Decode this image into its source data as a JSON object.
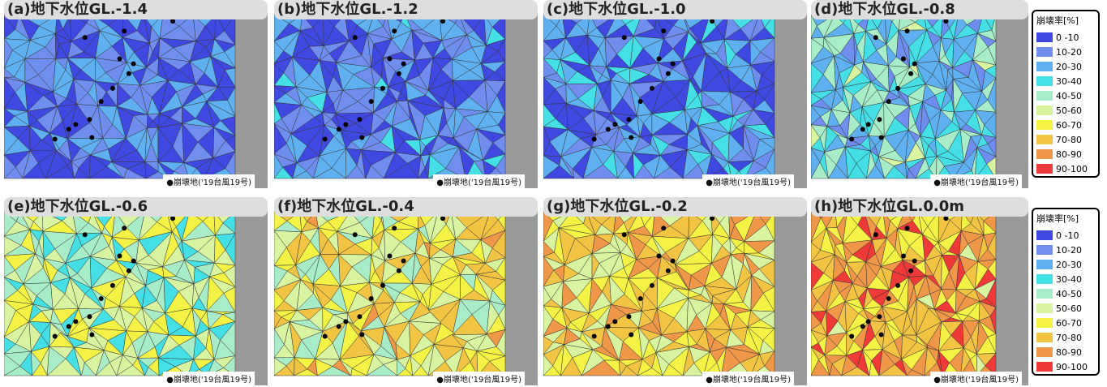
{
  "panels": [
    {
      "title": "(a)地下水位GL.-1.4"
    },
    {
      "title": "(b)地下水位GL.-1.2"
    },
    {
      "title": "(c)地下水位GL.-1.0"
    },
    {
      "title": "(d)地下水位GL.-0.8"
    },
    {
      "title": "(e)地下水位GL.-0.6"
    },
    {
      "title": "(f)地下水位GL.-0.4"
    },
    {
      "title": "(g)地下水位GL.-0.2"
    },
    {
      "title": "(h)地下水位GL.0.0m"
    }
  ],
  "note": "崩壊地('19台風19号)",
  "legend": {
    "title": "崩壊率[%]",
    "items": [
      {
        "label": "0 -10",
        "color": "#3f48e0"
      },
      {
        "label": "10-20",
        "color": "#6f8ef0"
      },
      {
        "label": "20-30",
        "color": "#5fb0f0"
      },
      {
        "label": "30-40",
        "color": "#44e0e6"
      },
      {
        "label": "40-50",
        "color": "#a8ecc8"
      },
      {
        "label": "50-60",
        "color": "#d8f4a0"
      },
      {
        "label": "60-70",
        "color": "#f4f244"
      },
      {
        "label": "70-80",
        "color": "#f2c444"
      },
      {
        "label": "80-90",
        "color": "#f09848"
      },
      {
        "label": "90-100",
        "color": "#f03a3a"
      }
    ]
  }
}
